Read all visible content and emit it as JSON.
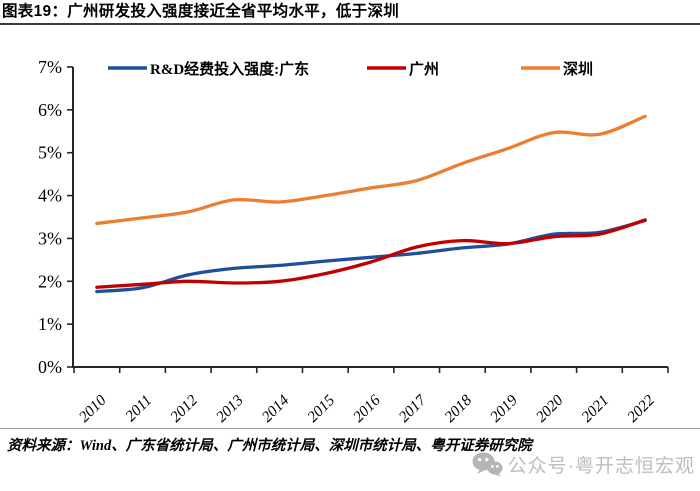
{
  "header": {
    "title": "图表19：广州研发投入强度接近全省平均水平，低于深圳"
  },
  "chart_data": {
    "type": "line",
    "x": [
      "2010",
      "2011",
      "2012",
      "2013",
      "2014",
      "2015",
      "2016",
      "2017",
      "2018",
      "2019",
      "2020",
      "2021",
      "2022"
    ],
    "series": [
      {
        "name": "R&D经费投入强度:广东",
        "color": "#1F4E9B",
        "values": [
          1.76,
          1.85,
          2.15,
          2.3,
          2.37,
          2.47,
          2.56,
          2.65,
          2.78,
          2.87,
          3.1,
          3.14,
          3.42
        ]
      },
      {
        "name": "广州",
        "color": "#C00000",
        "values": [
          1.86,
          1.93,
          2.0,
          1.96,
          2.0,
          2.18,
          2.45,
          2.8,
          2.95,
          2.88,
          3.04,
          3.1,
          3.43
        ]
      },
      {
        "name": "深圳",
        "color": "#ED7D31",
        "values": [
          3.35,
          3.48,
          3.62,
          3.9,
          3.85,
          4.0,
          4.18,
          4.35,
          4.75,
          5.1,
          5.47,
          5.43,
          5.85
        ]
      }
    ],
    "ylim": [
      0,
      7
    ],
    "yticks": [
      "0%",
      "1%",
      "2%",
      "3%",
      "4%",
      "5%",
      "6%",
      "7%"
    ],
    "legend_position": "top-inside",
    "grid": false,
    "axis_color": "#262626"
  },
  "footer": {
    "source": "资料来源：Wind、广东省统计局、广州市统计局、深圳市统计局、粤开证券研究院",
    "watermark_icon": "wechat-icon",
    "watermark_text": "公众号·粤开志恒宏观"
  }
}
